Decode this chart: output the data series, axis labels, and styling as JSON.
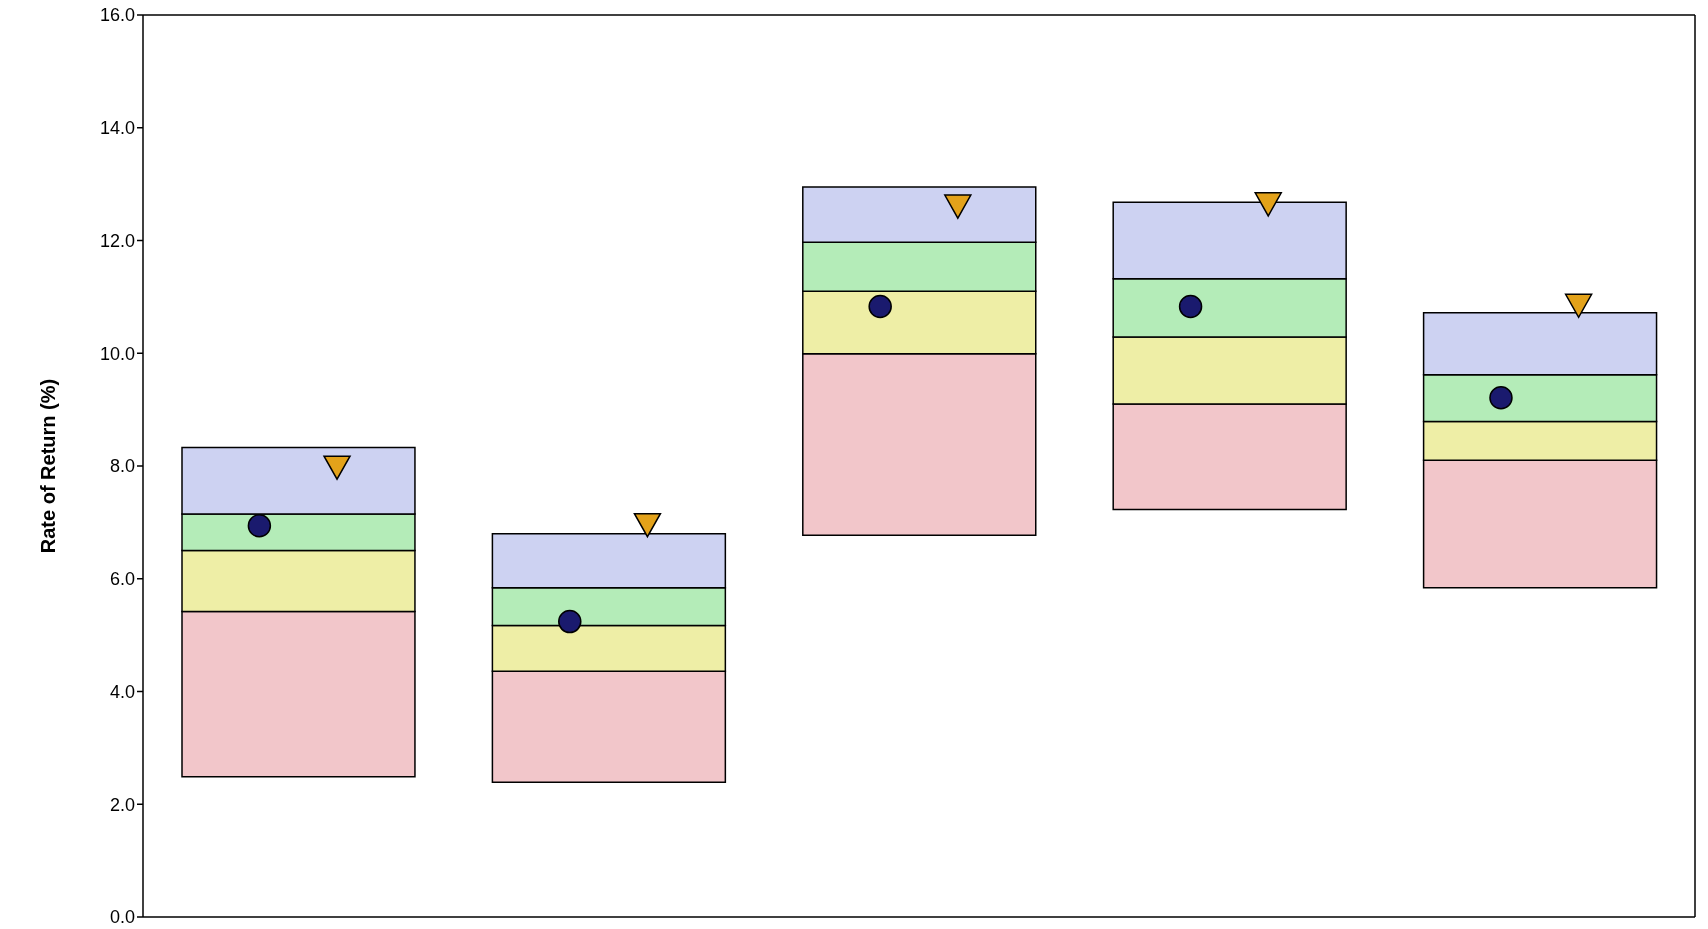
{
  "chart_data": {
    "type": "bar",
    "ylabel": "Rate of Return (%)",
    "categories": [
      null,
      null,
      null,
      null,
      null
    ],
    "series": [
      {
        "color": "#f2c6ca",
        "base": [
          2.49,
          2.39,
          6.77,
          7.23,
          5.84
        ],
        "values": [
          2.93,
          1.97,
          3.22,
          1.87,
          2.26
        ]
      },
      {
        "color": "#eeeea6",
        "base": [
          5.42,
          4.36,
          9.99,
          9.1,
          8.1
        ],
        "values": [
          1.08,
          0.81,
          1.11,
          1.19,
          0.69
        ]
      },
      {
        "color": "#b4ecb8",
        "base": [
          6.5,
          5.17,
          11.1,
          10.29,
          8.79
        ],
        "values": [
          0.65,
          0.67,
          0.87,
          1.03,
          0.83
        ]
      },
      {
        "color": "#cdd2f2",
        "base": [
          7.15,
          5.84,
          11.97,
          11.32,
          9.62
        ],
        "values": [
          1.18,
          0.96,
          0.98,
          1.36,
          1.1
        ]
      },
      {
        "type": "scatter",
        "marker": "circle",
        "color": "#1a1a6e",
        "values": [
          6.94,
          5.24,
          10.83,
          10.83,
          9.21
        ]
      },
      {
        "type": "scatter",
        "marker": "triangle",
        "color": "#e3a21a",
        "values": [
          7.98,
          6.96,
          12.61,
          12.65,
          10.85
        ]
      }
    ],
    "ylim": [
      0,
      16
    ],
    "yticks": [
      {
        "value": 0,
        "label": "0.0"
      },
      {
        "value": 2,
        "label": "2.0"
      },
      {
        "value": 4,
        "label": "4.0"
      },
      {
        "value": 6,
        "label": "6.0"
      },
      {
        "value": 8,
        "label": "8.0"
      },
      {
        "value": 10,
        "label": "10.0"
      },
      {
        "value": 12,
        "label": "12.0"
      },
      {
        "value": 14,
        "label": "14.0"
      },
      {
        "value": 16,
        "label": "16.0"
      }
    ],
    "grid": false,
    "legend": false
  }
}
